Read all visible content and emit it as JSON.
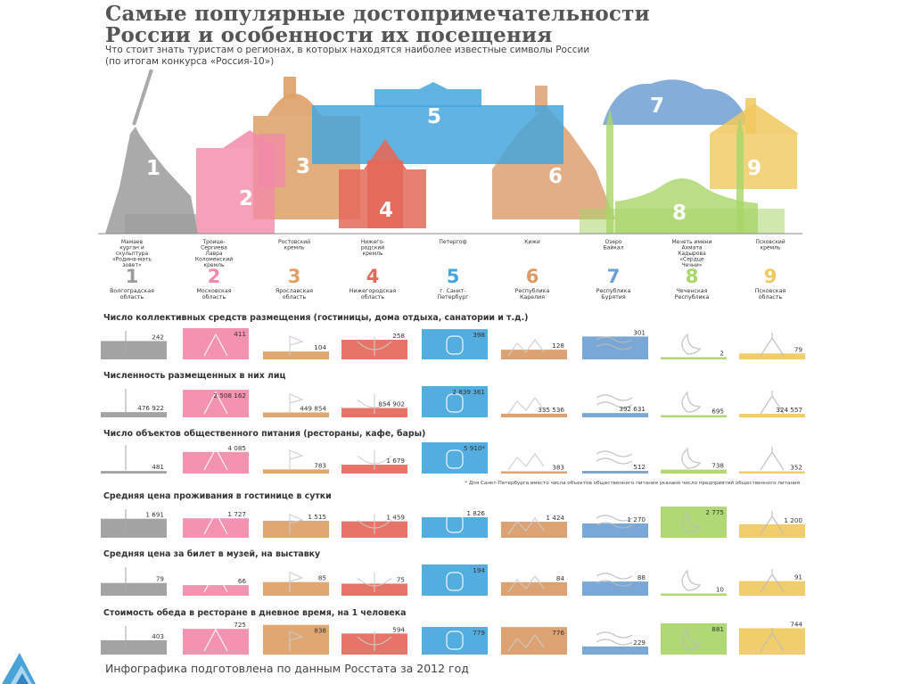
{
  "header": {
    "title_line1": "Самые популярные достопримечательности",
    "title_line2": "России и особенности их посещения",
    "subtitle_line1": "Что стоит знать туристам о регионах, в которых находятся наиболее известные символы России",
    "subtitle_line2": "(по итогам конкурса «Россия-10»)"
  },
  "colors": [
    "#9b9b9b",
    "#f28aa9",
    "#dea066",
    "#e4695a",
    "#45a6dc",
    "#d99a66",
    "#6e9fd2",
    "#a9d66a",
    "#f0c95e"
  ],
  "landmarks": [
    {
      "num": "1",
      "name": "Мамаев курган и скульптура «Родина-мать зовет»",
      "region": "Волгоградская область"
    },
    {
      "num": "2",
      "name": "Троице-Сергиева Лавра Коломенский кремль",
      "region": "Московская область"
    },
    {
      "num": "3",
      "name": "Ростовский кремль",
      "region": "Ярославская область"
    },
    {
      "num": "4",
      "name": "Нижегородский кремль",
      "region": "Нижегородская область"
    },
    {
      "num": "5",
      "name": "Петергоф",
      "region": "г. Санкт-Петербург"
    },
    {
      "num": "6",
      "name": "Кижи",
      "region": "Республика Карелия"
    },
    {
      "num": "7",
      "name": "Озеро Байкал",
      "region": "Республика Бурятия"
    },
    {
      "num": "8",
      "name": "Мечеть имени Ахмата Кадырова «Сердце Чечни»",
      "region": "Чеченская Республика"
    },
    {
      "num": "9",
      "name": "Псковский кремль",
      "region": "Псковская область"
    }
  ],
  "landmark_labels": [
    [
      "Мамаев",
      "курган и",
      "скульптура",
      "«Родина-мать",
      "зовет»"
    ],
    [
      "Троице-",
      "Сергиева",
      "Лавра",
      "Коломенский",
      "кремль"
    ],
    [
      "Ростовский",
      "кремль"
    ],
    [
      "Нижего-",
      "родский",
      "кремль"
    ],
    [
      "Петергоф"
    ],
    [
      "Кижи"
    ],
    [
      "Озеро",
      "Байкал"
    ],
    [
      "Мечеть имени",
      "Ахмата",
      "Кадырова",
      "«Сердце",
      "Чечни»"
    ],
    [
      "Псковский",
      "кремль"
    ]
  ],
  "region_labels": [
    [
      "Волгоградская",
      "область"
    ],
    [
      "Московская",
      "область"
    ],
    [
      "Ярославская",
      "область"
    ],
    [
      "Нижегородская",
      "область"
    ],
    [
      "г. Санкт-",
      "Петербург"
    ],
    [
      "Республика",
      "Карелия"
    ],
    [
      "Республика",
      "Бурятия"
    ],
    [
      "Чеченская",
      "Республика"
    ],
    [
      "Псковская",
      "область"
    ]
  ],
  "chart_data": {
    "type": "bar",
    "categories": [
      "1",
      "2",
      "3",
      "4",
      "5",
      "6",
      "7",
      "8",
      "9"
    ],
    "panels": [
      {
        "title": "Число коллективных средств размещения (гостиницы, дома отдыха, санатории и т.д.)",
        "values": [
          242,
          411,
          104,
          258,
          398,
          128,
          301,
          2,
          79
        ],
        "labels": [
          "242",
          "411",
          "104",
          "258",
          "398",
          "128",
          "301",
          "2",
          "79"
        ]
      },
      {
        "title": "Численность размещенных в них лиц",
        "values": [
          476922,
          2508162,
          449854,
          854902,
          2839361,
          335536,
          392631,
          695,
          324557
        ],
        "labels": [
          "476 922",
          "2 508 162",
          "449 854",
          "854 902",
          "2 839 361",
          "335 536",
          "392 631",
          "695",
          "324 557"
        ]
      },
      {
        "title": "Число объектов общественного питания (рестораны, кафе, бары)",
        "values": [
          481,
          4085,
          783,
          1679,
          5910,
          383,
          512,
          738,
          352
        ],
        "labels": [
          "481",
          "4 085",
          "783",
          "1 679",
          "5 910*",
          "383",
          "512",
          "738",
          "352"
        ],
        "note": "* Для Санкт-Петербурга вместо числа объектов общественного питания указано число предприятий общественного питания"
      },
      {
        "title": "Средняя цена проживания в гостинице в сутки",
        "values": [
          1691,
          1727,
          1515,
          1459,
          1826,
          1424,
          1270,
          2775,
          1200
        ],
        "labels": [
          "1 691",
          "1 727",
          "1 515",
          "1 459",
          "1 826",
          "1 424",
          "1 270",
          "2 775",
          "1 200"
        ]
      },
      {
        "title": "Средняя цена за билет в музей, на выставку",
        "values": [
          79,
          66,
          85,
          75,
          194,
          84,
          88,
          10,
          91
        ],
        "labels": [
          "79",
          "66",
          "85",
          "75",
          "194",
          "84",
          "88",
          "10",
          "91"
        ]
      },
      {
        "title": "Стоимость обеда в ресторане в дневное время, на 1 человека",
        "values": [
          403,
          725,
          838,
          594,
          779,
          776,
          229,
          881,
          744
        ],
        "labels": [
          "403",
          "725",
          "838",
          "594",
          "779",
          "776",
          "229",
          "881",
          "744"
        ]
      }
    ]
  },
  "footer": {
    "text": "Инфографика подготовлена по данным Росстата за 2012 год"
  }
}
